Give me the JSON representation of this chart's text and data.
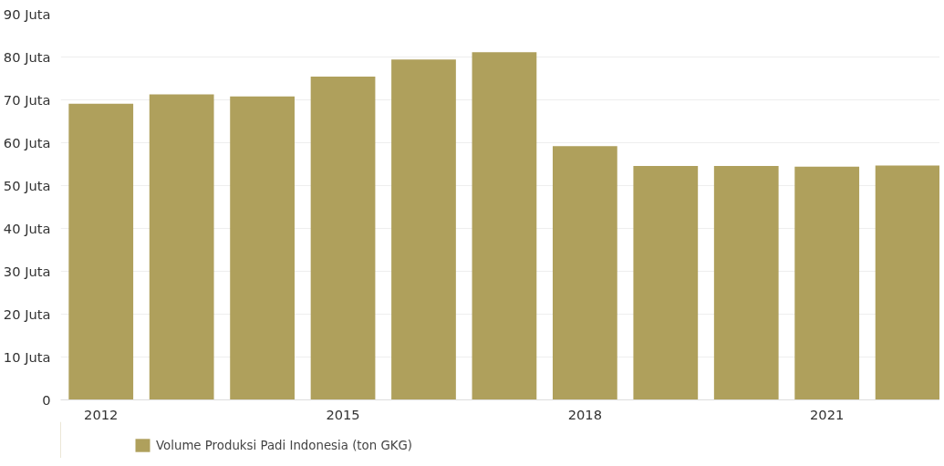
{
  "chart_data": {
    "type": "bar",
    "x": [
      2012,
      2013,
      2014,
      2015,
      2016,
      2017,
      2018,
      2019,
      2020,
      2021,
      2022
    ],
    "series": [
      {
        "name": "Volume Produksi Padi Indonesia (ton GKG)",
        "color": "#afa05c",
        "values": [
          69.1,
          71.3,
          70.8,
          75.4,
          79.4,
          81.1,
          59.2,
          54.6,
          54.6,
          54.4,
          54.7
        ]
      }
    ],
    "xlim": [
      2011.5,
      2022.4
    ],
    "xticks": [
      2012,
      2015,
      2018,
      2021
    ],
    "ylim": [
      0,
      90
    ],
    "yticks": [
      0,
      {
        "value": 10,
        "label": "10 Juta"
      },
      {
        "value": 20,
        "label": "20 Juta"
      },
      {
        "value": 30,
        "label": "30 Juta"
      },
      {
        "value": 40,
        "label": "40 Juta"
      },
      {
        "value": 50,
        "label": "50 Juta"
      },
      {
        "value": 60,
        "label": "60 Juta"
      },
      {
        "value": 70,
        "label": "70 Juta"
      },
      {
        "value": 80,
        "label": "80 Juta"
      },
      {
        "value": 90,
        "label": "90 Juta"
      }
    ],
    "grid": "y",
    "legend": "bottom left"
  }
}
